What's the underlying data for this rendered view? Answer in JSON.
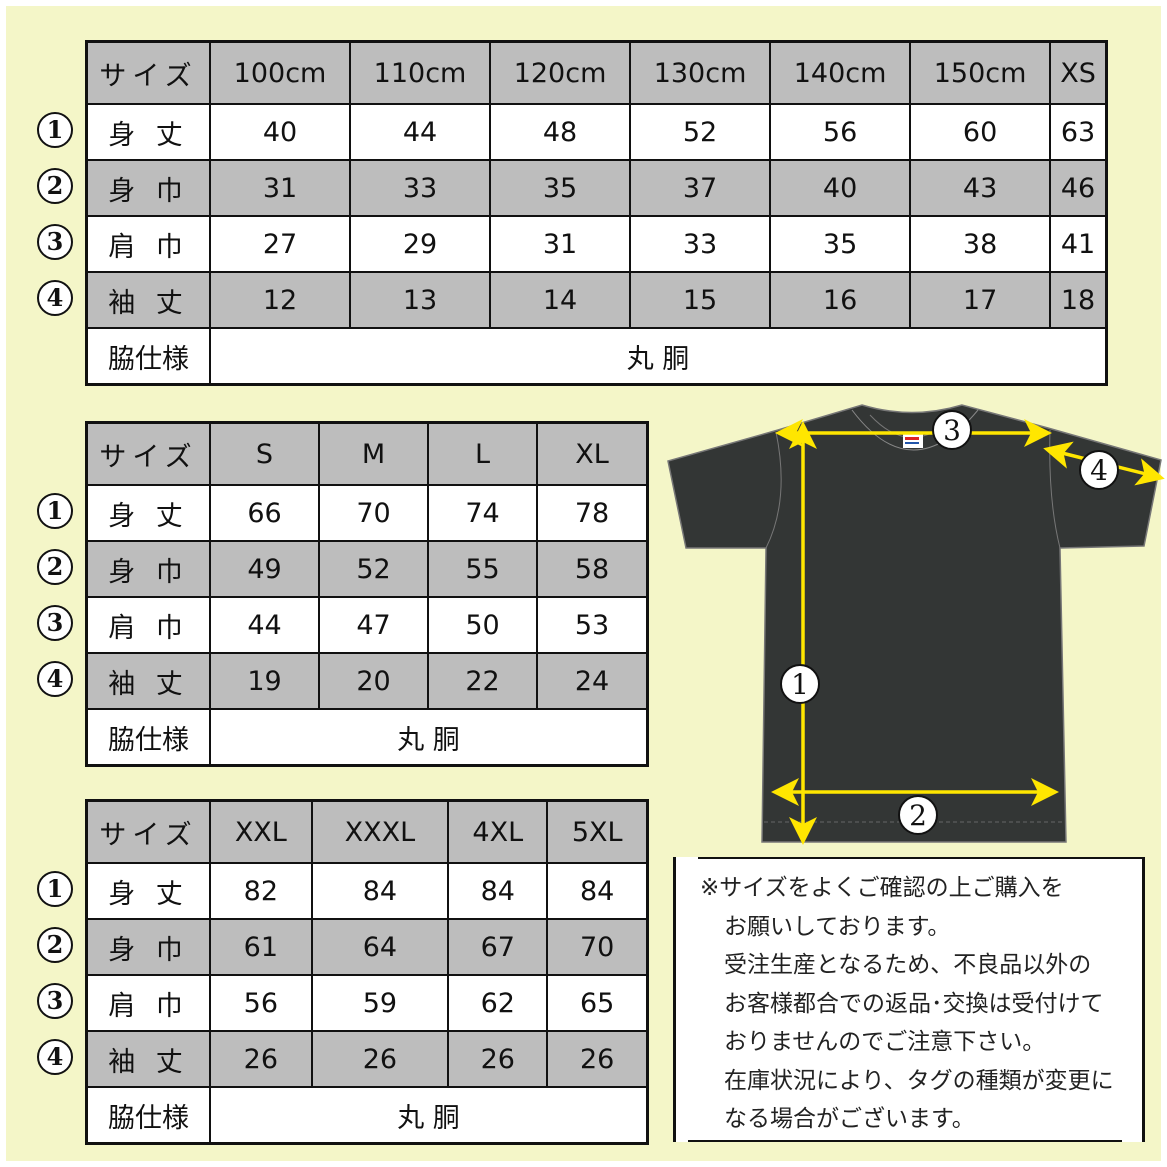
{
  "colors": {
    "background": "#f4f6c8",
    "header_gray": "#bdbdbd",
    "shirt": "#333635",
    "arrow": "#ffe600"
  },
  "markers": [
    "1",
    "2",
    "3",
    "4"
  ],
  "tables": [
    {
      "header": [
        "サイズ",
        "100cm",
        "110cm",
        "120cm",
        "130cm",
        "140cm",
        "150cm",
        "XS"
      ],
      "rows": [
        {
          "label": "身 丈",
          "values": [
            "40",
            "44",
            "48",
            "52",
            "56",
            "60",
            "63"
          ]
        },
        {
          "label": "身 巾",
          "values": [
            "31",
            "33",
            "35",
            "37",
            "40",
            "43",
            "46"
          ]
        },
        {
          "label": "肩 巾",
          "values": [
            "27",
            "29",
            "31",
            "33",
            "35",
            "38",
            "41"
          ]
        },
        {
          "label": "袖 丈",
          "values": [
            "12",
            "13",
            "14",
            "15",
            "16",
            "17",
            "18"
          ]
        }
      ],
      "side_label": "脇仕様",
      "side_value": "丸 胴"
    },
    {
      "header": [
        "サイズ",
        "S",
        "M",
        "L",
        "XL"
      ],
      "rows": [
        {
          "label": "身 丈",
          "values": [
            "66",
            "70",
            "74",
            "78"
          ]
        },
        {
          "label": "身 巾",
          "values": [
            "49",
            "52",
            "55",
            "58"
          ]
        },
        {
          "label": "肩 巾",
          "values": [
            "44",
            "47",
            "50",
            "53"
          ]
        },
        {
          "label": "袖 丈",
          "values": [
            "19",
            "20",
            "22",
            "24"
          ]
        }
      ],
      "side_label": "脇仕様",
      "side_value": "丸 胴"
    },
    {
      "header": [
        "サイズ",
        "XXL",
        "XXXL",
        "4XL",
        "5XL"
      ],
      "rows": [
        {
          "label": "身 丈",
          "values": [
            "82",
            "84",
            "84",
            "84"
          ]
        },
        {
          "label": "身 巾",
          "values": [
            "61",
            "64",
            "67",
            "70"
          ]
        },
        {
          "label": "肩 巾",
          "values": [
            "56",
            "59",
            "62",
            "65"
          ]
        },
        {
          "label": "袖 丈",
          "values": [
            "26",
            "26",
            "26",
            "26"
          ]
        }
      ],
      "side_label": "脇仕様",
      "side_value": "丸 胴"
    }
  ],
  "notes": [
    "※サイズをよくご確認の上ご購入を",
    "お願いしております。",
    "受注生産となるため、不良品以外の",
    "お客様都合での返品･交換は受付けて",
    "おりませんのでご注意下さい。",
    "在庫状況により、タグの種類が変更に",
    "なる場合がございます。"
  ]
}
